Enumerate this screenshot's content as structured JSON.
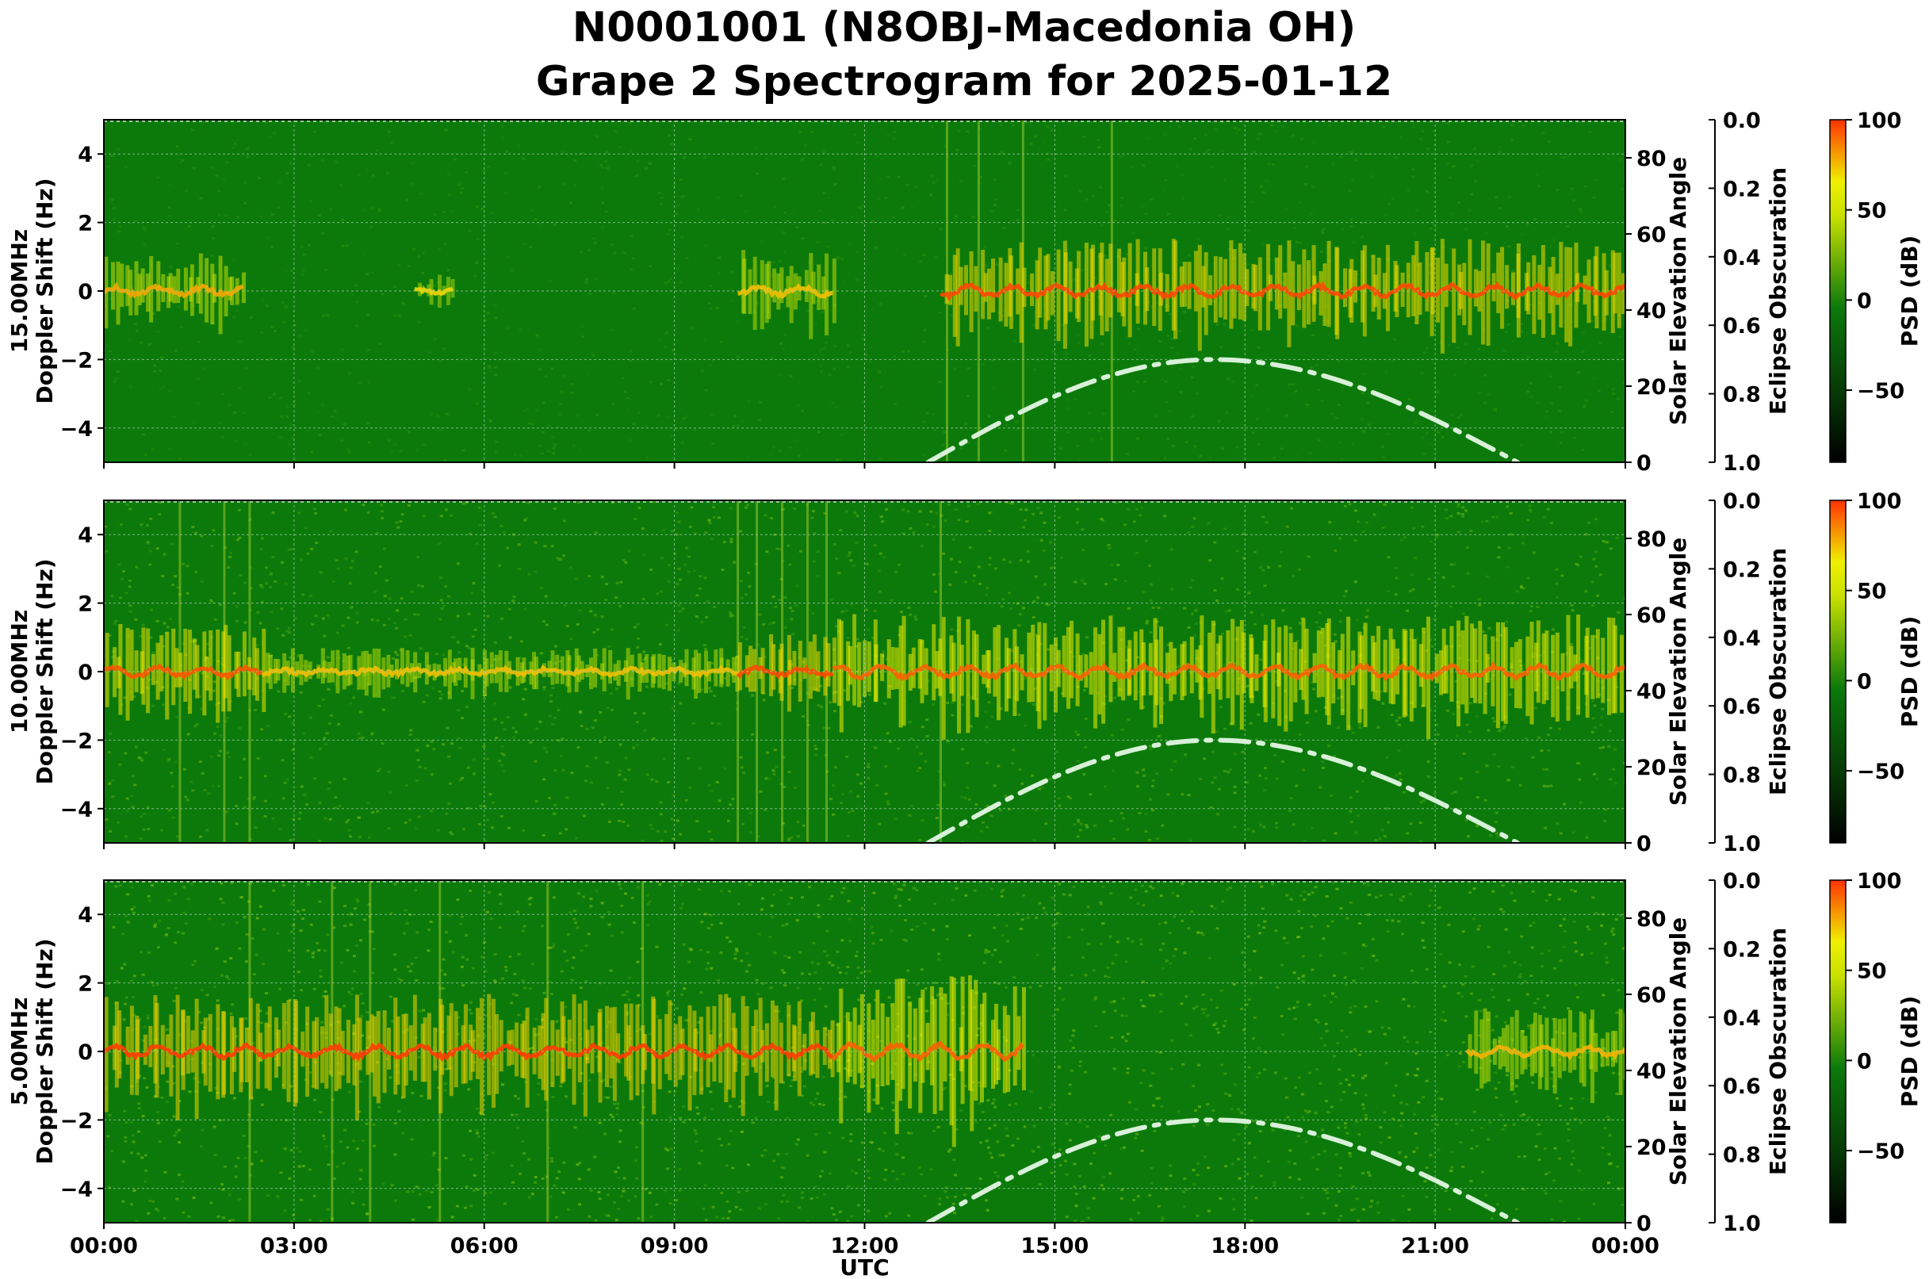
{
  "title_line1": "N0001001 (N8OBJ-Macedonia OH)",
  "title_line2": "Grape 2 Spectrogram for 2025-01-12",
  "colors": {
    "background_green": "#0b7a0b",
    "signal_yellow": "#f0f000",
    "signal_red": "#ff3300",
    "solar_curve": "#d8f0d8",
    "grid": "#9fc79f"
  },
  "chart_data": [
    {
      "type": "heatmap",
      "name": "15.00MHz",
      "ylabel_line1": "15.00MHz",
      "ylabel_line2": "Doppler Shift (Hz)",
      "ylim": [
        -5,
        5
      ],
      "yticks": [
        4,
        2,
        0,
        -2,
        -4
      ],
      "ytick_labels": [
        "4",
        "2",
        "0",
        "−2",
        "−4"
      ],
      "xlim_hours": [
        0,
        24
      ],
      "x_tick_hours": [
        0,
        3,
        6,
        9,
        12,
        15,
        18,
        21,
        24
      ],
      "right_axis": {
        "label": "Solar Elevation Angle",
        "ylim": [
          0,
          90
        ],
        "ticks": [
          0,
          20,
          40,
          60,
          80
        ]
      },
      "eclipse_axis": {
        "label": "Eclipse Obscuration",
        "ylim": [
          1.0,
          0.0
        ],
        "ticks": [
          "0.0",
          "0.2",
          "0.4",
          "0.6",
          "0.8",
          "1.0"
        ]
      },
      "colorbar": {
        "label": "PSD (dB)",
        "range": [
          -90,
          100
        ],
        "ticks": [
          "100",
          "50",
          "0",
          "−50"
        ]
      },
      "solar_elevation_peak_deg": 27,
      "solar_elevation_peak_hour": 17.5,
      "solar_rise_hour": 13.0,
      "solar_set_hour": 22.3,
      "signal_segments_hours": [
        [
          0,
          2.2
        ],
        [
          4.9,
          5.5
        ],
        [
          10.0,
          11.5
        ],
        [
          13.2,
          24
        ]
      ],
      "segment_amplitude": [
        0.8,
        0.35,
        0.9,
        1.1
      ],
      "segment_strength": [
        0.55,
        0.35,
        0.45,
        0.95
      ],
      "background_level": 0.12,
      "vertical_noise_lines_hours": [
        13.3,
        13.8,
        14.5,
        15.9
      ]
    },
    {
      "type": "heatmap",
      "name": "10.00MHz",
      "ylabel_line1": "10.00MHz",
      "ylabel_line2": "Doppler Shift (Hz)",
      "ylim": [
        -5,
        5
      ],
      "yticks": [
        4,
        2,
        0,
        -2,
        -4
      ],
      "ytick_labels": [
        "4",
        "2",
        "0",
        "−2",
        "−4"
      ],
      "xlim_hours": [
        0,
        24
      ],
      "x_tick_hours": [
        0,
        3,
        6,
        9,
        12,
        15,
        18,
        21,
        24
      ],
      "right_axis": {
        "label": "Solar Elevation Angle",
        "ylim": [
          0,
          90
        ],
        "ticks": [
          0,
          20,
          40,
          60,
          80
        ]
      },
      "eclipse_axis": {
        "label": "Eclipse Obscuration",
        "ylim": [
          1.0,
          0.0
        ],
        "ticks": [
          "0.0",
          "0.2",
          "0.4",
          "0.6",
          "0.8",
          "1.0"
        ]
      },
      "colorbar": {
        "label": "PSD (dB)",
        "range": [
          -90,
          100
        ],
        "ticks": [
          "100",
          "50",
          "0",
          "−50"
        ]
      },
      "solar_elevation_peak_deg": 27,
      "solar_elevation_peak_hour": 17.5,
      "solar_rise_hour": 13.0,
      "solar_set_hour": 22.3,
      "signal_segments_hours": [
        [
          0,
          2.5
        ],
        [
          2.5,
          10.0
        ],
        [
          10.0,
          11.5
        ],
        [
          11.5,
          24
        ]
      ],
      "segment_amplitude": [
        1.0,
        0.5,
        0.8,
        1.2
      ],
      "segment_strength": [
        0.9,
        0.45,
        0.95,
        0.85
      ],
      "background_level": 0.32,
      "vertical_noise_lines_hours": [
        1.2,
        1.9,
        2.3,
        10.0,
        10.3,
        10.7,
        11.1,
        11.4,
        13.2
      ]
    },
    {
      "type": "heatmap",
      "name": "5.00MHz",
      "ylabel_line1": "5.00MHz",
      "ylabel_line2": "Doppler Shift (Hz)",
      "ylim": [
        -5,
        5
      ],
      "yticks": [
        4,
        2,
        0,
        -2,
        -4
      ],
      "ytick_labels": [
        "4",
        "2",
        "0",
        "−2",
        "−4"
      ],
      "xlim_hours": [
        0,
        24
      ],
      "x_tick_hours": [
        0,
        3,
        6,
        9,
        12,
        15,
        18,
        21,
        24
      ],
      "x_tick_labels": [
        "00:00",
        "03:00",
        "06:00",
        "09:00",
        "12:00",
        "15:00",
        "18:00",
        "21:00",
        "00:00"
      ],
      "xlabel": "UTC",
      "right_axis": {
        "label": "Solar Elevation Angle",
        "ylim": [
          0,
          90
        ],
        "ticks": [
          0,
          20,
          40,
          60,
          80
        ]
      },
      "eclipse_axis": {
        "label": "Eclipse Obscuration",
        "ylim": [
          1.0,
          0.0
        ],
        "ticks": [
          "0.0",
          "0.2",
          "0.4",
          "0.6",
          "0.8",
          "1.0"
        ]
      },
      "colorbar": {
        "label": "PSD (dB)",
        "range": [
          -90,
          100
        ],
        "ticks": [
          "100",
          "50",
          "0",
          "−50"
        ]
      },
      "solar_elevation_peak_deg": 27,
      "solar_elevation_peak_hour": 17.5,
      "solar_rise_hour": 13.0,
      "solar_set_hour": 22.3,
      "signal_segments_hours": [
        [
          0,
          11.5
        ],
        [
          11.5,
          14.5
        ],
        [
          21.5,
          24
        ]
      ],
      "segment_amplitude": [
        1.2,
        1.6,
        0.9
      ],
      "segment_strength": [
        1.0,
        0.85,
        0.5
      ],
      "background_level": 0.38,
      "vertical_noise_lines_hours": [
        2.3,
        3.6,
        4.2,
        5.3,
        7.0,
        8.5
      ]
    }
  ]
}
